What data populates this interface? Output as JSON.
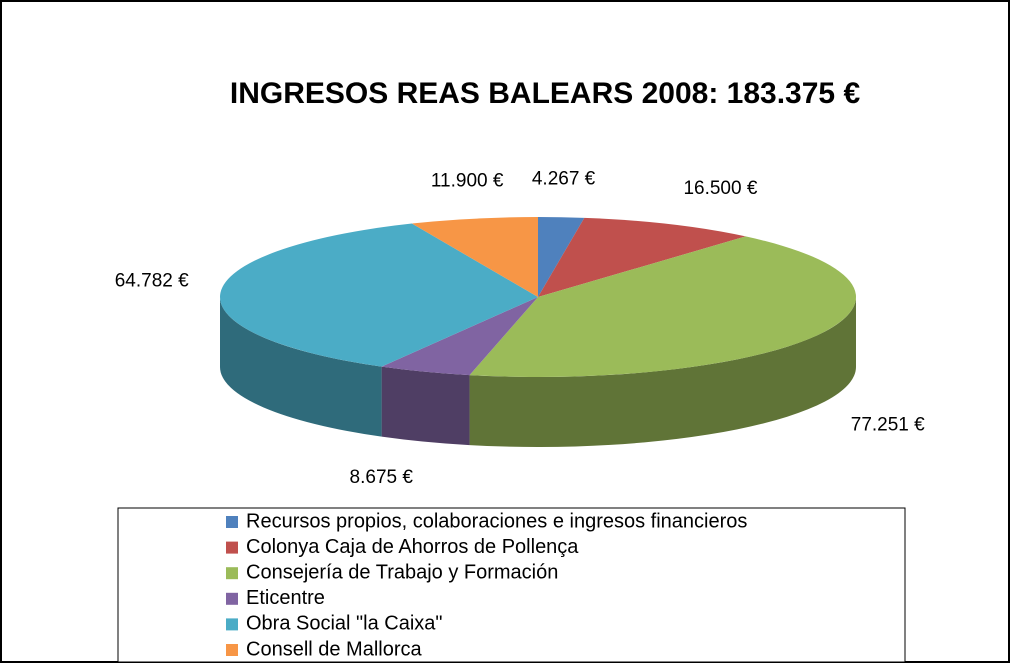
{
  "chart_data": {
    "type": "pie",
    "title": "INGRESOS REAS BALEARS 2008: 183.375 €",
    "categories": [
      "Recursos propios, colaboraciones e ingresos financieros",
      "Colonya Caja de Ahorros de Pollença",
      "Consejería de Trabajo y Formación",
      "Eticentre",
      "Obra Social \"la Caixa\"",
      "Consell de Mallorca"
    ],
    "values": [
      4267,
      16500,
      77251,
      8675,
      64782,
      11900
    ],
    "value_labels": [
      "4.267 €",
      "16.500 €",
      "77.251 €",
      "8.675 €",
      "64.782 €",
      "11.900 €"
    ],
    "colors": [
      "#4f81bd",
      "#c0504d",
      "#9bbb59",
      "#8064a2",
      "#4bacc6",
      "#f79646"
    ]
  }
}
